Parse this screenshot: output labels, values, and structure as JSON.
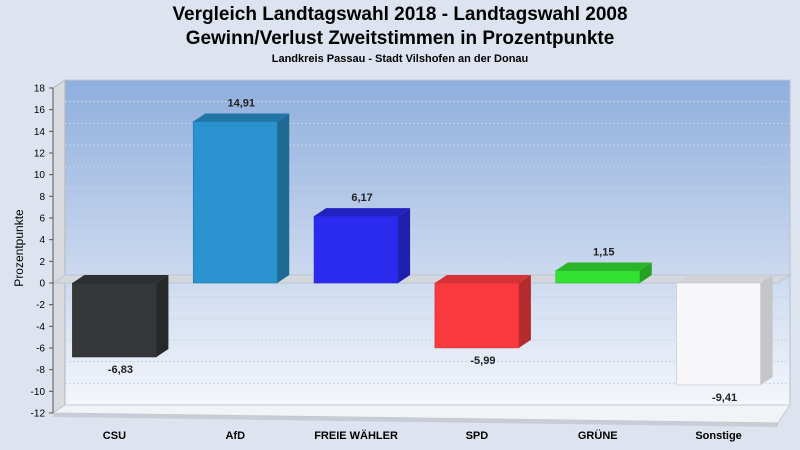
{
  "chart_data": {
    "type": "bar",
    "title": "Vergleich Landtagswahl 2018 - Landtagswahl 2008",
    "subtitle": "Gewinn/Verlust Zweitstimmen in Prozentpunkte",
    "subsubtitle": "Landkreis Passau - Stadt Vilshofen an der Donau",
    "ylabel": "Prozentpunkte",
    "xlabel": "",
    "ylim": [
      -12,
      18
    ],
    "yticks": [
      18,
      16,
      14,
      12,
      10,
      8,
      6,
      4,
      2,
      0,
      -2,
      -4,
      -6,
      -8,
      -10,
      -12
    ],
    "grid": true,
    "categories": [
      "CSU",
      "AfD",
      "FREIE WÄHLER",
      "SPD",
      "GRÜNE",
      "Sonstige"
    ],
    "values": [
      -6.83,
      14.91,
      6.17,
      -5.99,
      1.15,
      -9.41
    ],
    "value_labels": [
      "-6,83",
      "14,91",
      "6,17",
      "-5,99",
      "1,15",
      "-9,41"
    ],
    "colors": [
      "#353739",
      "#2a93cf",
      "#2b2bf0",
      "#fb3a3f",
      "#33e133",
      "#f7f7fa"
    ]
  }
}
